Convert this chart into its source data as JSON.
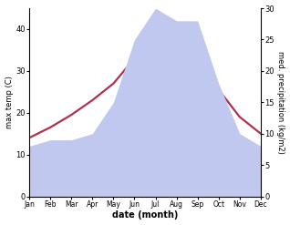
{
  "months": [
    "Jan",
    "Feb",
    "Mar",
    "Apr",
    "May",
    "Jun",
    "Jul",
    "Aug",
    "Sep",
    "Oct",
    "Nov",
    "Dec"
  ],
  "temp_max": [
    14.0,
    16.5,
    19.5,
    23.0,
    27.0,
    33.0,
    37.5,
    37.5,
    32.0,
    25.5,
    19.0,
    15.0
  ],
  "precipitation": [
    8.0,
    9.0,
    9.0,
    10.0,
    15.0,
    25.0,
    30.0,
    28.0,
    28.0,
    18.0,
    10.0,
    8.0
  ],
  "temp_color": "#b03050",
  "precip_fill_color": "#c0c8f0",
  "temp_ylim": [
    0,
    45
  ],
  "precip_ylim": [
    0,
    30
  ],
  "temp_yticks": [
    0,
    10,
    20,
    30,
    40
  ],
  "precip_yticks": [
    0,
    5,
    10,
    15,
    20,
    25,
    30
  ],
  "title_left": "max temp (C)",
  "title_right": "med. precipitation (kg/m2)",
  "xlabel": "date (month)",
  "bg_color": "#ffffff"
}
